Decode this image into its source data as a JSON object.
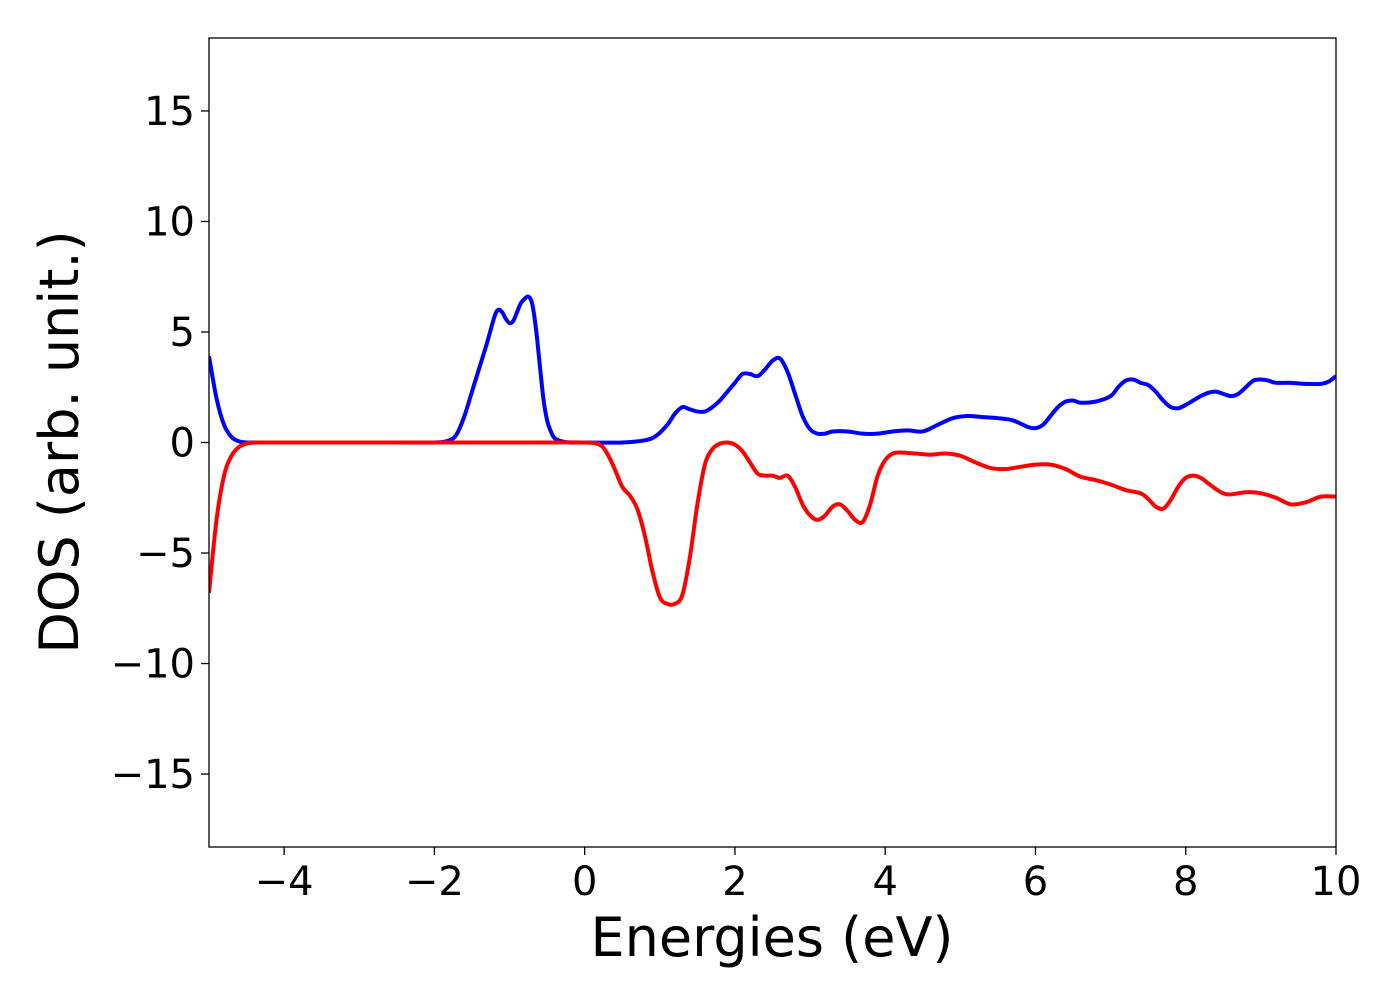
{
  "chart_data": {
    "type": "line",
    "title": "",
    "xlabel": "Energies (eV)",
    "ylabel": "DOS (arb. unit.)",
    "xlim": [
      -5,
      10
    ],
    "ylim": [
      -18.3,
      18.3
    ],
    "xticks": [
      -4,
      -2,
      0,
      2,
      4,
      6,
      8,
      10
    ],
    "xtick_labels": [
      "−4",
      "−2",
      "0",
      "2",
      "4",
      "6",
      "8",
      "10"
    ],
    "yticks": [
      15,
      10,
      5,
      0,
      -5,
      -10,
      -15
    ],
    "ytick_labels": [
      "15",
      "10",
      "5",
      "0",
      "−5",
      "−10",
      "−15"
    ],
    "grid": false,
    "legend": "none",
    "series": [
      {
        "color": "#0000ff",
        "x": [
          -5.0,
          -4.9,
          -4.8,
          -4.7,
          -4.6,
          -4.5,
          -4.4,
          -4.2,
          -3.5,
          -2.5,
          -2.0,
          -1.8,
          -1.7,
          -1.6,
          -1.5,
          -1.4,
          -1.3,
          -1.2,
          -1.15,
          -1.1,
          -1.05,
          -1.0,
          -0.95,
          -0.9,
          -0.85,
          -0.8,
          -0.75,
          -0.7,
          -0.65,
          -0.6,
          -0.55,
          -0.5,
          -0.45,
          -0.4,
          -0.3,
          -0.2,
          0.0,
          0.5,
          0.8,
          0.95,
          1.1,
          1.2,
          1.3,
          1.4,
          1.5,
          1.6,
          1.7,
          1.8,
          1.9,
          2.0,
          2.1,
          2.2,
          2.3,
          2.4,
          2.5,
          2.6,
          2.7,
          2.8,
          2.9,
          3.0,
          3.1,
          3.2,
          3.3,
          3.5,
          3.7,
          3.9,
          4.1,
          4.3,
          4.5,
          4.7,
          4.9,
          5.1,
          5.3,
          5.5,
          5.7,
          5.9,
          6.0,
          6.1,
          6.2,
          6.3,
          6.4,
          6.5,
          6.6,
          6.8,
          7.0,
          7.1,
          7.2,
          7.3,
          7.4,
          7.5,
          7.6,
          7.7,
          7.8,
          7.9,
          8.0,
          8.1,
          8.2,
          8.3,
          8.4,
          8.5,
          8.6,
          8.7,
          8.8,
          8.9,
          9.0,
          9.1,
          9.2,
          9.4,
          9.6,
          9.8,
          9.9,
          10.0
        ],
        "y": [
          3.9,
          2.0,
          0.8,
          0.25,
          0.05,
          0.0,
          0.0,
          0.0,
          0.0,
          0.0,
          0.0,
          0.1,
          0.4,
          1.2,
          2.3,
          3.4,
          4.5,
          5.7,
          6.0,
          5.9,
          5.6,
          5.4,
          5.5,
          5.9,
          6.3,
          6.5,
          6.6,
          6.3,
          5.2,
          3.6,
          2.0,
          1.0,
          0.5,
          0.2,
          0.05,
          0.0,
          0.0,
          0.0,
          0.1,
          0.3,
          0.8,
          1.3,
          1.6,
          1.5,
          1.4,
          1.4,
          1.6,
          1.9,
          2.3,
          2.7,
          3.1,
          3.1,
          3.0,
          3.3,
          3.7,
          3.8,
          3.2,
          2.2,
          1.2,
          0.6,
          0.4,
          0.4,
          0.5,
          0.5,
          0.4,
          0.4,
          0.5,
          0.55,
          0.5,
          0.8,
          1.1,
          1.2,
          1.15,
          1.1,
          1.0,
          0.7,
          0.65,
          0.8,
          1.2,
          1.6,
          1.85,
          1.9,
          1.8,
          1.85,
          2.1,
          2.5,
          2.8,
          2.85,
          2.7,
          2.6,
          2.3,
          1.9,
          1.6,
          1.55,
          1.7,
          1.9,
          2.1,
          2.25,
          2.3,
          2.2,
          2.1,
          2.2,
          2.5,
          2.8,
          2.85,
          2.8,
          2.7,
          2.7,
          2.65,
          2.65,
          2.75,
          3.0
        ]
      },
      {
        "color": "#ff0000",
        "x": [
          -5.0,
          -4.9,
          -4.8,
          -4.7,
          -4.6,
          -4.5,
          -4.4,
          -4.3,
          -3.5,
          -2.5,
          -1.5,
          -0.5,
          0.0,
          0.2,
          0.3,
          0.4,
          0.5,
          0.6,
          0.7,
          0.8,
          0.9,
          1.0,
          1.1,
          1.2,
          1.3,
          1.4,
          1.5,
          1.6,
          1.7,
          1.8,
          1.9,
          2.0,
          2.1,
          2.2,
          2.3,
          2.4,
          2.5,
          2.6,
          2.7,
          2.8,
          2.9,
          3.0,
          3.1,
          3.2,
          3.3,
          3.4,
          3.5,
          3.6,
          3.7,
          3.8,
          3.9,
          4.0,
          4.1,
          4.2,
          4.4,
          4.6,
          4.8,
          5.0,
          5.2,
          5.4,
          5.6,
          5.8,
          6.0,
          6.2,
          6.4,
          6.6,
          6.8,
          7.0,
          7.2,
          7.4,
          7.5,
          7.6,
          7.7,
          7.8,
          7.9,
          8.0,
          8.1,
          8.2,
          8.3,
          8.4,
          8.5,
          8.6,
          8.8,
          9.0,
          9.2,
          9.4,
          9.6,
          9.8,
          10.0
        ],
        "y": [
          -6.8,
          -3.5,
          -1.5,
          -0.6,
          -0.2,
          -0.05,
          0.0,
          0.0,
          0.0,
          0.0,
          0.0,
          0.0,
          0.0,
          -0.1,
          -0.5,
          -1.2,
          -2.0,
          -2.4,
          -3.0,
          -4.2,
          -5.8,
          -7.0,
          -7.3,
          -7.3,
          -6.9,
          -5.2,
          -2.8,
          -1.0,
          -0.3,
          -0.05,
          0.0,
          -0.1,
          -0.4,
          -0.9,
          -1.4,
          -1.5,
          -1.5,
          -1.6,
          -1.5,
          -2.0,
          -2.8,
          -3.3,
          -3.5,
          -3.3,
          -2.9,
          -2.8,
          -3.1,
          -3.5,
          -3.6,
          -2.8,
          -1.5,
          -0.8,
          -0.5,
          -0.45,
          -0.5,
          -0.55,
          -0.5,
          -0.6,
          -0.9,
          -1.15,
          -1.2,
          -1.1,
          -1.0,
          -1.0,
          -1.2,
          -1.55,
          -1.7,
          -1.9,
          -2.15,
          -2.3,
          -2.55,
          -2.9,
          -3.0,
          -2.6,
          -2.0,
          -1.6,
          -1.5,
          -1.6,
          -1.85,
          -2.1,
          -2.3,
          -2.35,
          -2.25,
          -2.3,
          -2.5,
          -2.8,
          -2.7,
          -2.45,
          -2.45
        ]
      }
    ]
  }
}
